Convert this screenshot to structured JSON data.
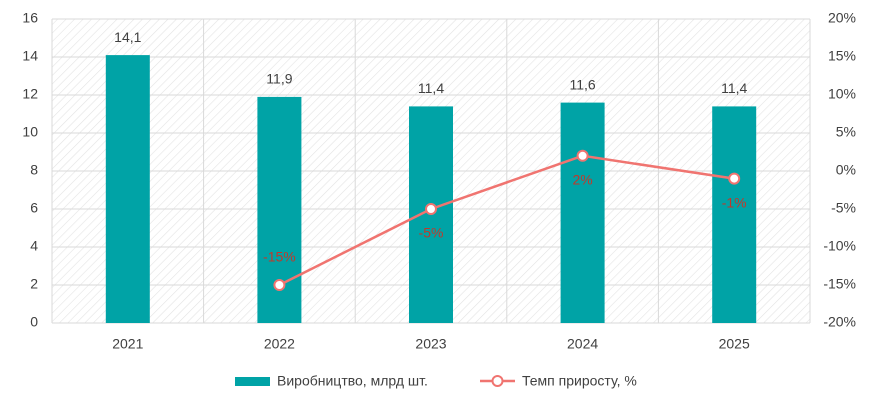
{
  "chart_data": {
    "type": "bar",
    "categories": [
      "2021",
      "2022",
      "2023",
      "2024",
      "2025"
    ],
    "series": [
      {
        "name": "Виробництво, млрд шт.",
        "type": "bar",
        "color": "#00a3a6",
        "values": [
          14.1,
          11.9,
          11.4,
          11.6,
          11.4
        ],
        "value_labels": [
          "14,1",
          "11,9",
          "11,4",
          "11,6",
          "11,4"
        ]
      },
      {
        "name": "Темп приросту, %",
        "type": "line",
        "axis": "y2",
        "color": "#f07470",
        "values": [
          null,
          -15,
          -5,
          2,
          -1
        ],
        "value_labels": [
          null,
          "-15%",
          "-5%",
          "2%",
          "-1%"
        ]
      }
    ],
    "ylim": [
      0,
      16
    ],
    "yticks": [
      0,
      2,
      4,
      6,
      8,
      10,
      12,
      14,
      16
    ],
    "y2lim": [
      -20,
      20
    ],
    "y2ticks": [
      {
        "value": -20,
        "label": "-20%"
      },
      {
        "value": -15,
        "label": "-15%"
      },
      {
        "value": -10,
        "label": "-10%"
      },
      {
        "value": -5,
        "label": "-5%"
      },
      {
        "value": 0,
        "label": "0%"
      },
      {
        "value": 5,
        "label": "5%"
      },
      {
        "value": 10,
        "label": "10%"
      },
      {
        "value": 15,
        "label": "15%"
      },
      {
        "value": 20,
        "label": "20%"
      }
    ],
    "grid": true,
    "legend": "bottom"
  }
}
